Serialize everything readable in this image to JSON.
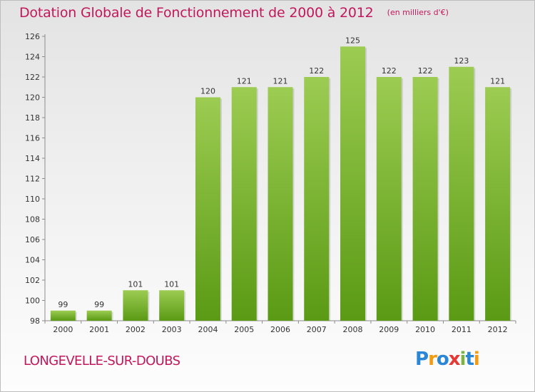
{
  "title": "Dotation Globale de Fonctionnement de 2000 à 2012",
  "unit_note": "(en milliers d'€)",
  "commune": "LONGEVELLE-SUR-DOUBS",
  "logo": {
    "text": "Proxiti",
    "letters": [
      {
        "ch": "P",
        "color": "#2a86d6"
      },
      {
        "ch": "r",
        "color": "#f39c12"
      },
      {
        "ch": "o",
        "color": "#2a86d6"
      },
      {
        "ch": "x",
        "color": "#e53935"
      },
      {
        "ch": "i",
        "color": "#7cb342"
      },
      {
        "ch": "t",
        "color": "#2a86d6"
      },
      {
        "ch": "i",
        "color": "#f39c12"
      }
    ]
  },
  "chart_data": {
    "type": "bar",
    "categories": [
      "2000",
      "2001",
      "2002",
      "2003",
      "2004",
      "2005",
      "2006",
      "2007",
      "2008",
      "2009",
      "2010",
      "2011",
      "2012"
    ],
    "values": [
      99,
      99,
      101,
      101,
      120,
      121,
      121,
      122,
      125,
      122,
      122,
      123,
      121
    ],
    "title": "Dotation Globale de Fonctionnement de 2000 à 2012",
    "xlabel": "",
    "ylabel": "",
    "ylim": [
      98,
      126
    ],
    "yticks": [
      98,
      100,
      102,
      104,
      106,
      108,
      110,
      112,
      114,
      116,
      118,
      120,
      122,
      124,
      126
    ],
    "grid": false,
    "bar_color": "#7cb342",
    "bar_color_light": "#9ccc52",
    "bar_color_dark": "#5a9a14"
  }
}
